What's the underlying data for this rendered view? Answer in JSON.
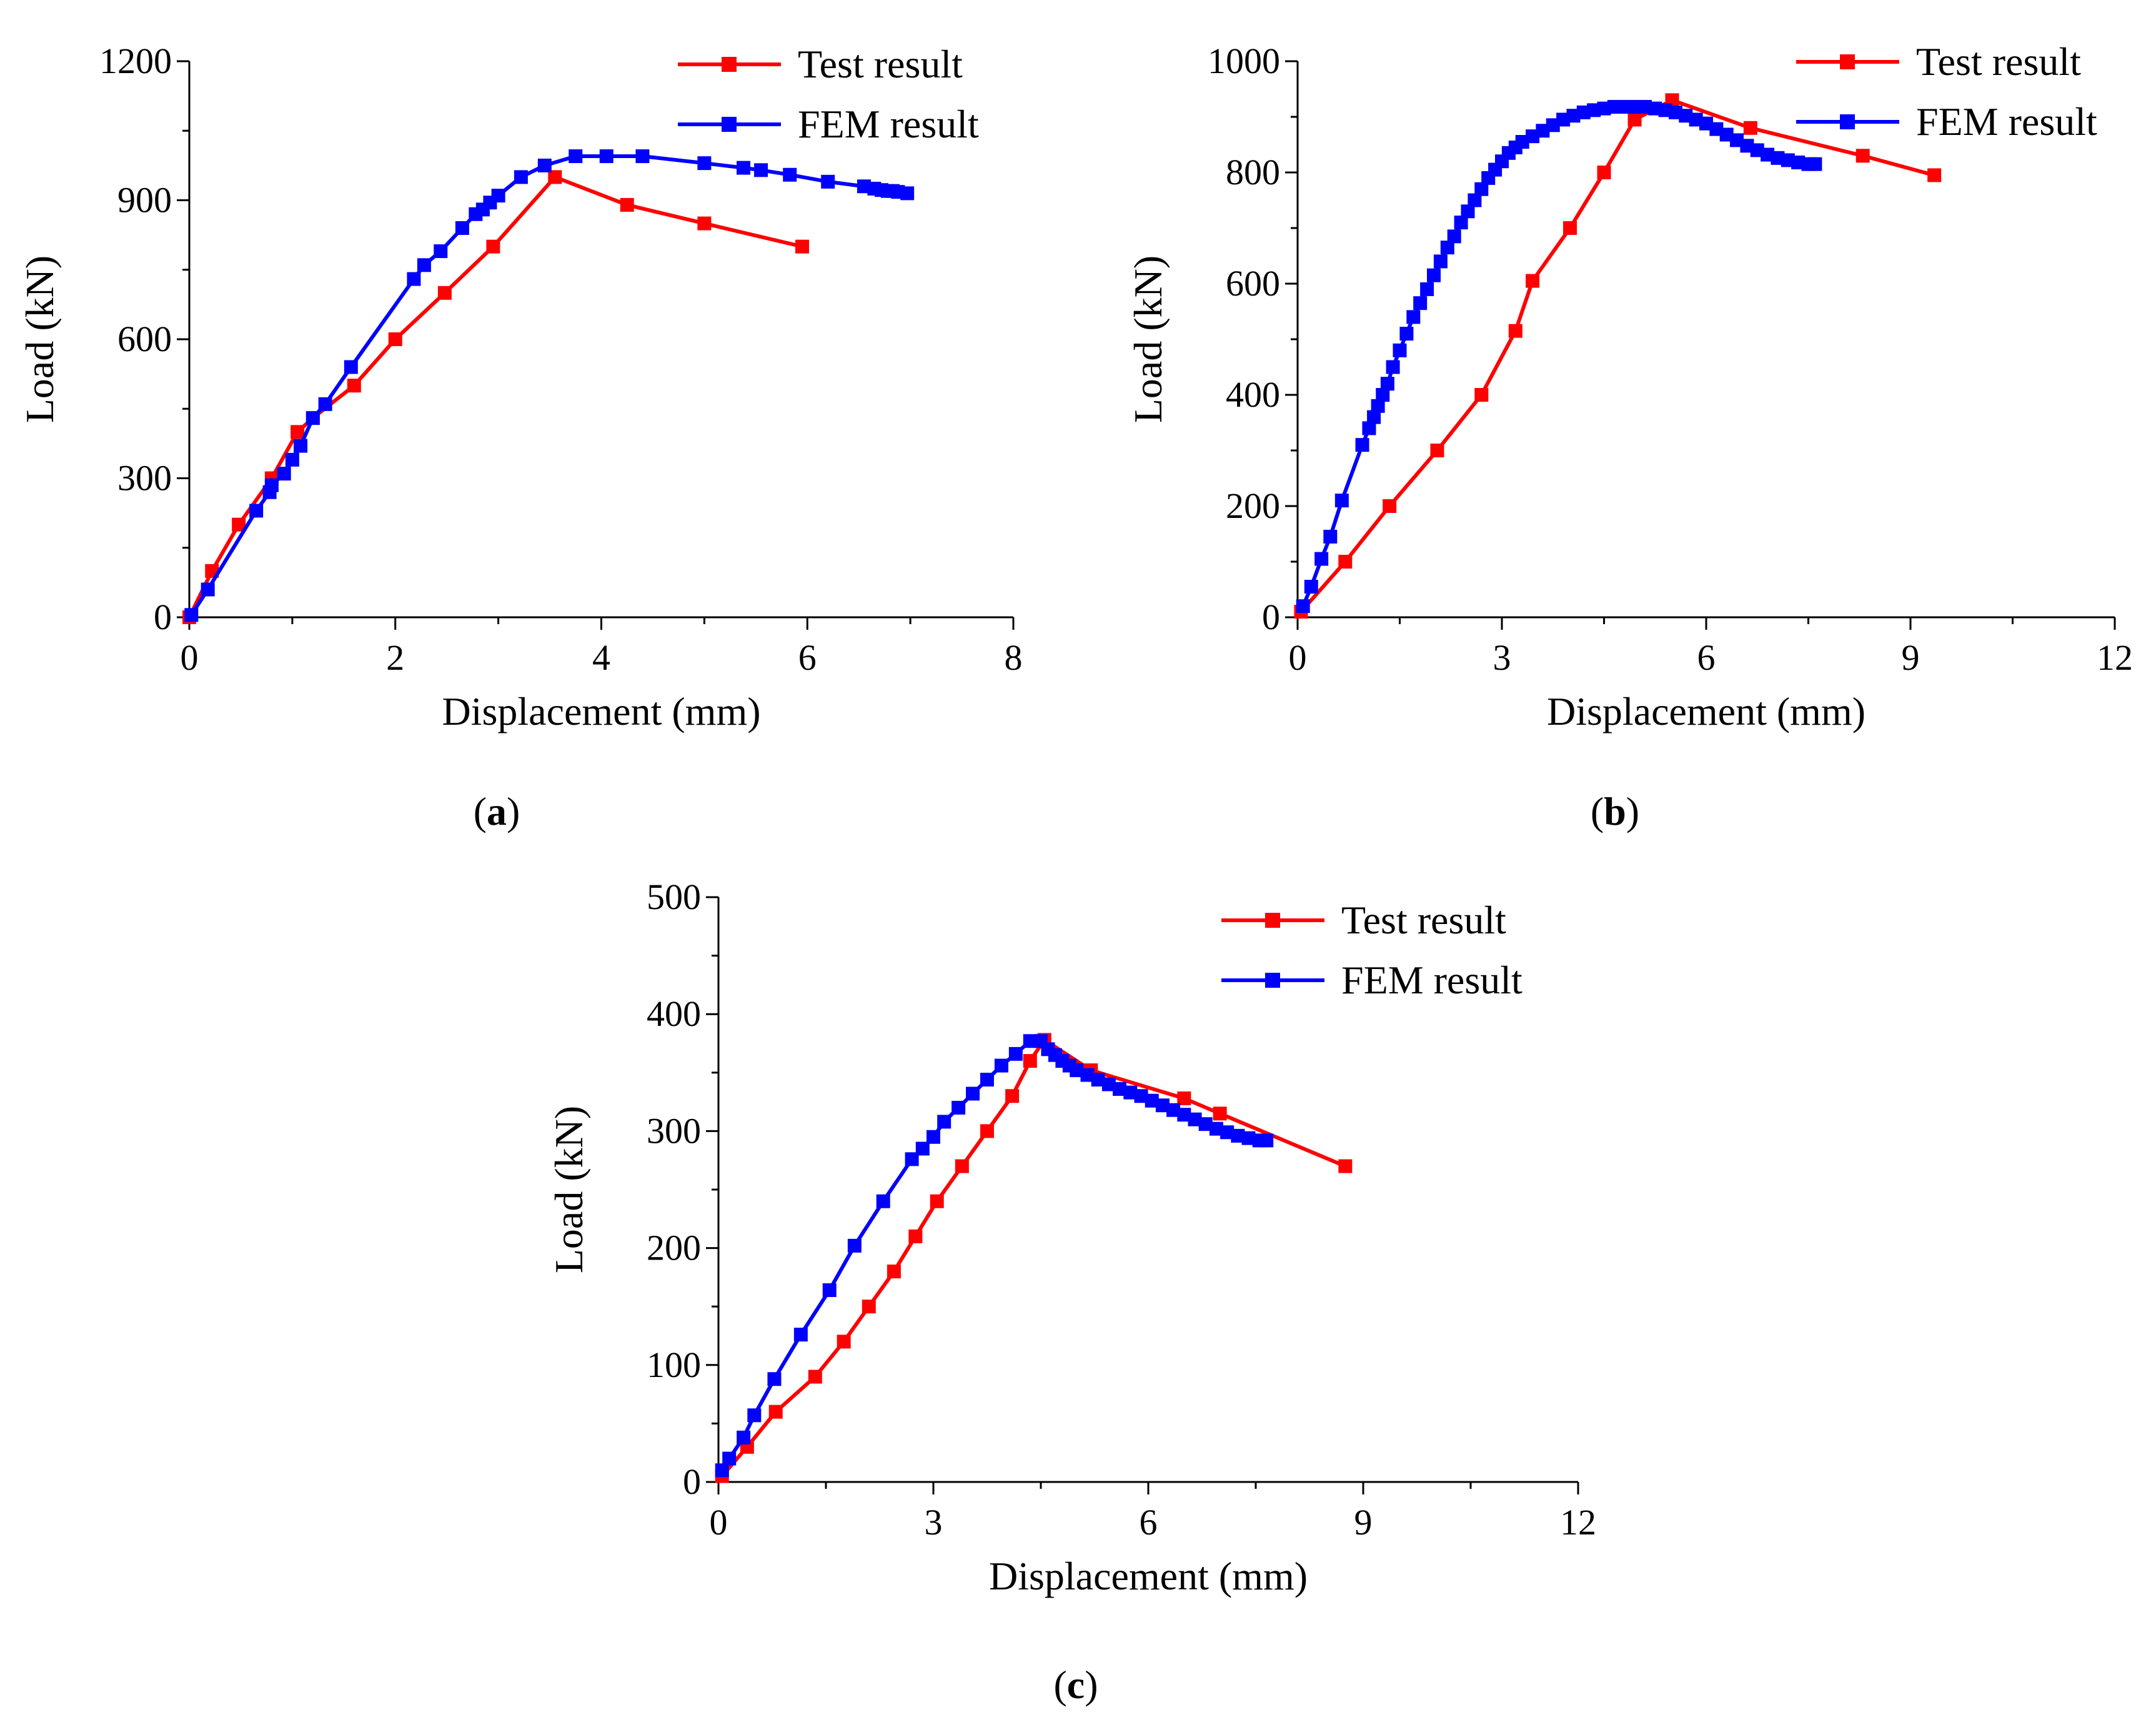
{
  "figure": {
    "captions": [
      {
        "open": "(",
        "letter": "a",
        "close": ")"
      },
      {
        "open": "(",
        "letter": "b",
        "close": ")"
      },
      {
        "open": "(",
        "letter": "c",
        "close": ")"
      }
    ]
  },
  "colors": {
    "test": "#ff0000",
    "fem": "#0000ff",
    "axis": "#000000"
  },
  "chart_data": [
    {
      "type": "line",
      "panel": "a",
      "xlabel": "Displacement (mm)",
      "ylabel": "Load (kN)",
      "xlim": [
        0,
        8
      ],
      "ylim": [
        0,
        1200
      ],
      "xticks": [
        0,
        2,
        4,
        6,
        8
      ],
      "yticks": [
        0,
        300,
        600,
        900,
        1200
      ],
      "legend": "top-right",
      "series": [
        {
          "name": "Test result",
          "color": "#ff0000",
          "x": [
            0,
            0.22,
            0.48,
            0.8,
            1.05,
            1.2,
            1.6,
            2.0,
            2.48,
            2.95,
            3.55,
            4.25,
            5.0,
            5.95
          ],
          "y": [
            0,
            100,
            200,
            300,
            400,
            430,
            500,
            600,
            700,
            800,
            950,
            890,
            850,
            800
          ]
        },
        {
          "name": "FEM result",
          "color": "#0000ff",
          "x": [
            0.02,
            0.18,
            0.65,
            0.78,
            0.8,
            0.92,
            1.0,
            1.08,
            1.2,
            1.32,
            1.57,
            2.18,
            2.28,
            2.44,
            2.65,
            2.78,
            2.85,
            2.92,
            3.0,
            3.22,
            3.45,
            3.75,
            4.05,
            4.4,
            5.0,
            5.38,
            5.55,
            5.83,
            6.2,
            6.55,
            6.65,
            6.72,
            6.78,
            6.83,
            6.88,
            6.97
          ],
          "y": [
            5,
            60,
            230,
            270,
            285,
            310,
            340,
            370,
            430,
            460,
            540,
            730,
            760,
            790,
            840,
            870,
            880,
            895,
            910,
            950,
            975,
            995,
            995,
            995,
            980,
            970,
            965,
            955,
            940,
            930,
            925,
            922,
            920,
            920,
            918,
            915
          ]
        }
      ]
    },
    {
      "type": "line",
      "panel": "b",
      "xlabel": "Displacement (mm)",
      "ylabel": "Load (kN)",
      "xlim": [
        0,
        12
      ],
      "ylim": [
        0,
        1000
      ],
      "xticks": [
        0,
        3,
        6,
        9,
        12
      ],
      "yticks": [
        0,
        200,
        400,
        600,
        800,
        1000
      ],
      "legend": "top-right",
      "series": [
        {
          "name": "Test result",
          "color": "#ff0000",
          "x": [
            0.05,
            0.7,
            1.35,
            2.05,
            2.7,
            3.2,
            3.45,
            4.0,
            4.5,
            4.95,
            5.5,
            6.65,
            8.3,
            9.35
          ],
          "y": [
            10,
            100,
            200,
            300,
            400,
            515,
            605,
            700,
            800,
            895,
            930,
            880,
            830,
            795
          ]
        },
        {
          "name": "FEM result",
          "color": "#0000ff",
          "x": [
            0.08,
            0.2,
            0.35,
            0.48,
            0.65,
            0.95,
            1.05,
            1.12,
            1.18,
            1.25,
            1.32,
            1.4,
            1.5,
            1.6,
            1.7,
            1.8,
            1.9,
            2.0,
            2.1,
            2.2,
            2.3,
            2.4,
            2.5,
            2.6,
            2.7,
            2.8,
            2.9,
            3.0,
            3.1,
            3.2,
            3.3,
            3.45,
            3.6,
            3.75,
            3.9,
            4.05,
            4.2,
            4.35,
            4.5,
            4.65,
            4.8,
            4.95,
            5.1,
            5.25,
            5.4,
            5.55,
            5.7,
            5.85,
            6.0,
            6.15,
            6.3,
            6.45,
            6.6,
            6.75,
            6.9,
            7.05,
            7.2,
            7.35,
            7.5,
            7.6
          ],
          "y": [
            20,
            55,
            105,
            145,
            210,
            310,
            340,
            360,
            380,
            400,
            420,
            450,
            480,
            510,
            540,
            565,
            590,
            615,
            640,
            665,
            685,
            710,
            730,
            750,
            770,
            790,
            805,
            820,
            835,
            845,
            855,
            865,
            875,
            885,
            895,
            902,
            908,
            912,
            915,
            918,
            918,
            918,
            918,
            915,
            912,
            908,
            902,
            895,
            888,
            878,
            868,
            858,
            848,
            840,
            832,
            826,
            822,
            818,
            815,
            815
          ]
        }
      ]
    },
    {
      "type": "line",
      "panel": "c",
      "xlabel": "Displacement (mm)",
      "ylabel": "Load (kN)",
      "xlim": [
        0,
        12
      ],
      "ylim": [
        0,
        500
      ],
      "xticks": [
        0,
        3,
        6,
        9,
        12
      ],
      "yticks": [
        0,
        100,
        200,
        300,
        400,
        500
      ],
      "legend": "top-right",
      "series": [
        {
          "name": "Test result",
          "color": "#ff0000",
          "x": [
            0.05,
            0.4,
            0.8,
            1.35,
            1.75,
            2.1,
            2.45,
            2.75,
            3.05,
            3.4,
            3.75,
            4.1,
            4.35,
            4.55,
            5.2,
            6.5,
            7.0,
            8.75
          ],
          "y": [
            5,
            30,
            60,
            90,
            120,
            150,
            180,
            210,
            240,
            270,
            300,
            330,
            360,
            378,
            352,
            328,
            315,
            270
          ]
        },
        {
          "name": "FEM result",
          "color": "#0000ff",
          "x": [
            0.05,
            0.15,
            0.35,
            0.5,
            0.78,
            1.15,
            1.55,
            1.9,
            2.3,
            2.7,
            2.85,
            3.0,
            3.15,
            3.35,
            3.55,
            3.75,
            3.95,
            4.15,
            4.35,
            4.5,
            4.6,
            4.7,
            4.8,
            4.9,
            5.0,
            5.15,
            5.3,
            5.45,
            5.6,
            5.75,
            5.9,
            6.05,
            6.2,
            6.35,
            6.5,
            6.65,
            6.8,
            6.95,
            7.1,
            7.25,
            7.4,
            7.55,
            7.65
          ],
          "y": [
            10,
            20,
            38,
            57,
            88,
            126,
            164,
            202,
            240,
            276,
            285,
            295,
            308,
            320,
            332,
            344,
            356,
            366,
            377,
            377,
            370,
            365,
            360,
            356,
            352,
            348,
            344,
            340,
            336,
            333,
            330,
            326,
            322,
            318,
            314,
            310,
            306,
            302,
            299,
            296,
            294,
            292,
            292
          ]
        }
      ]
    }
  ]
}
